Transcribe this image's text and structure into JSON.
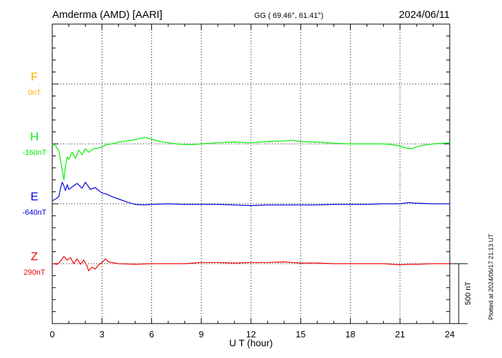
{
  "header": {
    "station": "Amderma (AMD)  [AARI]",
    "coords": "GG ( 69.46°,  61.41°)",
    "date": "2024/06/11"
  },
  "footer_note": "Plotted at 2024/06/17 21:13 UT",
  "chart_data": {
    "type": "line",
    "title": "Amderma (AMD)  [AARI]",
    "xlabel": "U T (hour)",
    "ylabel": "",
    "xlim": [
      0,
      24
    ],
    "xticks": [
      0,
      3,
      6,
      9,
      12,
      15,
      18,
      21,
      24
    ],
    "grid": true,
    "scale_bar": {
      "label": "500 nT",
      "nT": 500
    },
    "channels": [
      {
        "name": "F",
        "baseline_label": "0nT",
        "color": "#ffaa00",
        "level": 0,
        "series": []
      },
      {
        "name": "H",
        "baseline_label": "-160nT",
        "color": "#00ee00",
        "level": 1,
        "series": [
          [
            0,
            0
          ],
          [
            0.2,
            -15
          ],
          [
            0.4,
            -60
          ],
          [
            0.5,
            -140
          ],
          [
            0.6,
            -220
          ],
          [
            0.7,
            -300
          ],
          [
            0.8,
            -180
          ],
          [
            0.9,
            -110
          ],
          [
            1.0,
            -130
          ],
          [
            1.2,
            -70
          ],
          [
            1.4,
            -120
          ],
          [
            1.6,
            -50
          ],
          [
            1.8,
            -90
          ],
          [
            2.0,
            -40
          ],
          [
            2.2,
            -70
          ],
          [
            2.5,
            -40
          ],
          [
            2.8,
            -35
          ],
          [
            3.0,
            -25
          ],
          [
            3.3,
            -5
          ],
          [
            3.6,
            0
          ],
          [
            4.0,
            15
          ],
          [
            4.5,
            25
          ],
          [
            5.0,
            35
          ],
          [
            5.3,
            45
          ],
          [
            5.6,
            55
          ],
          [
            6.0,
            40
          ],
          [
            6.5,
            20
          ],
          [
            7.0,
            10
          ],
          [
            7.5,
            0
          ],
          [
            8.0,
            -5
          ],
          [
            8.5,
            -5
          ],
          [
            9.0,
            0
          ],
          [
            10.0,
            10
          ],
          [
            11.0,
            15
          ],
          [
            12.0,
            10
          ],
          [
            13.0,
            20
          ],
          [
            14.0,
            25
          ],
          [
            14.5,
            30
          ],
          [
            15.0,
            20
          ],
          [
            16.0,
            15
          ],
          [
            17.0,
            5
          ],
          [
            18.0,
            0
          ],
          [
            19.0,
            0
          ],
          [
            20.0,
            0
          ],
          [
            20.5,
            -5
          ],
          [
            21.0,
            -20
          ],
          [
            21.4,
            -35
          ],
          [
            21.7,
            -40
          ],
          [
            22.0,
            -25
          ],
          [
            22.5,
            -10
          ],
          [
            23.0,
            0
          ],
          [
            24.0,
            8
          ]
        ]
      },
      {
        "name": "E",
        "baseline_label": "-640nT",
        "color": "#0000dd",
        "level": 2,
        "series": [
          [
            0,
            25
          ],
          [
            0.2,
            40
          ],
          [
            0.4,
            60
          ],
          [
            0.5,
            130
          ],
          [
            0.6,
            180
          ],
          [
            0.7,
            150
          ],
          [
            0.8,
            110
          ],
          [
            0.9,
            160
          ],
          [
            1.0,
            120
          ],
          [
            1.2,
            140
          ],
          [
            1.5,
            170
          ],
          [
            1.8,
            130
          ],
          [
            2.0,
            180
          ],
          [
            2.3,
            120
          ],
          [
            2.6,
            135
          ],
          [
            3.0,
            90
          ],
          [
            3.3,
            80
          ],
          [
            3.6,
            60
          ],
          [
            4.0,
            40
          ],
          [
            4.5,
            15
          ],
          [
            5.0,
            -5
          ],
          [
            5.5,
            -10
          ],
          [
            6.0,
            -5
          ],
          [
            7.0,
            0
          ],
          [
            8.0,
            -5
          ],
          [
            9.0,
            -5
          ],
          [
            10.0,
            -5
          ],
          [
            11.0,
            -10
          ],
          [
            12.0,
            -15
          ],
          [
            13.0,
            -10
          ],
          [
            14.0,
            -10
          ],
          [
            15.0,
            -10
          ],
          [
            16.0,
            -10
          ],
          [
            17.0,
            -5
          ],
          [
            18.0,
            -5
          ],
          [
            19.0,
            -5
          ],
          [
            20.0,
            0
          ],
          [
            21.0,
            0
          ],
          [
            21.5,
            10
          ],
          [
            22.0,
            5
          ],
          [
            23.0,
            0
          ],
          [
            24.0,
            0
          ]
        ]
      },
      {
        "name": "Z",
        "baseline_label": "290nT",
        "color": "#ee0000",
        "level": 3,
        "series": [
          [
            0,
            0
          ],
          [
            0.3,
            -5
          ],
          [
            0.5,
            20
          ],
          [
            0.7,
            60
          ],
          [
            0.9,
            30
          ],
          [
            1.1,
            50
          ],
          [
            1.3,
            0
          ],
          [
            1.5,
            40
          ],
          [
            1.7,
            -5
          ],
          [
            1.9,
            30
          ],
          [
            2.1,
            -20
          ],
          [
            2.2,
            -60
          ],
          [
            2.4,
            -30
          ],
          [
            2.6,
            -45
          ],
          [
            2.8,
            -10
          ],
          [
            3.0,
            10
          ],
          [
            3.2,
            40
          ],
          [
            3.4,
            15
          ],
          [
            3.6,
            10
          ],
          [
            4.0,
            0
          ],
          [
            5.0,
            -5
          ],
          [
            6.0,
            0
          ],
          [
            7.0,
            0
          ],
          [
            8.0,
            0
          ],
          [
            9.0,
            10
          ],
          [
            10.0,
            10
          ],
          [
            11.0,
            5
          ],
          [
            12.0,
            10
          ],
          [
            13.0,
            10
          ],
          [
            14.0,
            15
          ],
          [
            14.5,
            10
          ],
          [
            15.0,
            5
          ],
          [
            16.0,
            5
          ],
          [
            17.0,
            0
          ],
          [
            18.0,
            0
          ],
          [
            19.0,
            0
          ],
          [
            20.0,
            0
          ],
          [
            20.5,
            -5
          ],
          [
            21.0,
            -10
          ],
          [
            21.5,
            -5
          ],
          [
            22.0,
            -5
          ],
          [
            23.0,
            0
          ],
          [
            24.0,
            0
          ]
        ]
      }
    ]
  }
}
